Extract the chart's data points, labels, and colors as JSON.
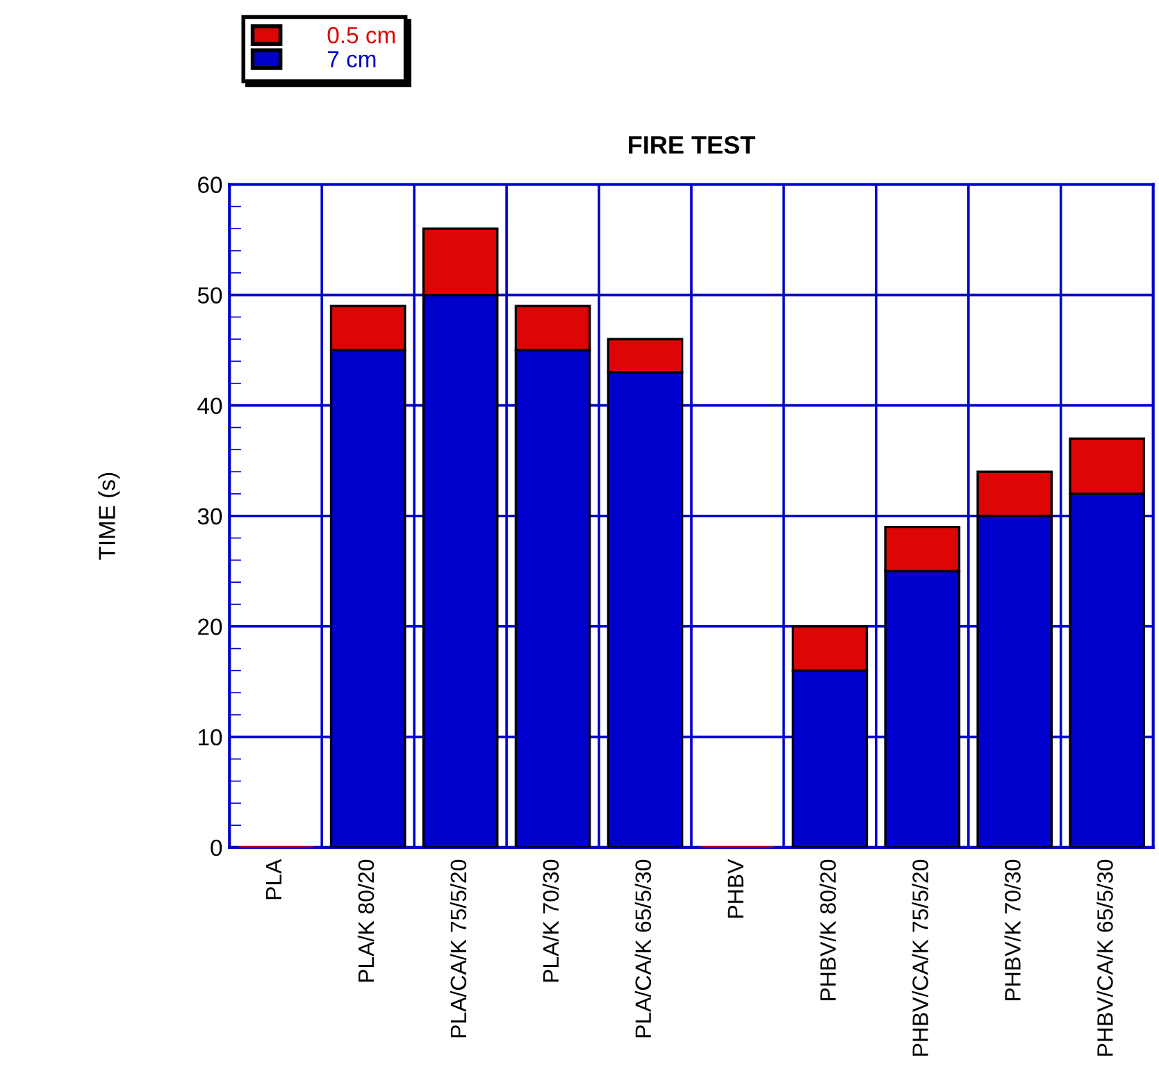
{
  "chart_data": {
    "type": "bar",
    "title": "FIRE TEST",
    "ylabel": "TIME (s)",
    "stacked": true,
    "categories": [
      "PLA",
      "PLA/K 80/20",
      "PLA/CA/K 75/5/20",
      "PLA/K 70/30",
      "PLA/CA/K 65/5/30",
      "PHBV",
      "PHBV/K 80/20",
      "PHBV/CA/K 75/5/20",
      "PHBV/K 70/30",
      "PHBV/CA/K 65/5/30"
    ],
    "series": [
      {
        "name": "7 cm",
        "color": "#0000cc",
        "values": [
          0,
          45,
          50,
          45,
          43,
          0,
          16,
          25,
          30,
          32
        ]
      },
      {
        "name": "0.5 cm",
        "color": "#dd0606",
        "values": [
          0,
          4,
          6,
          4,
          3,
          0,
          4,
          4,
          4,
          5
        ]
      }
    ],
    "ylim": [
      0,
      60
    ],
    "yticks": [
      0,
      10,
      20,
      30,
      40,
      50,
      60
    ],
    "grid": true,
    "legend": "top left"
  }
}
